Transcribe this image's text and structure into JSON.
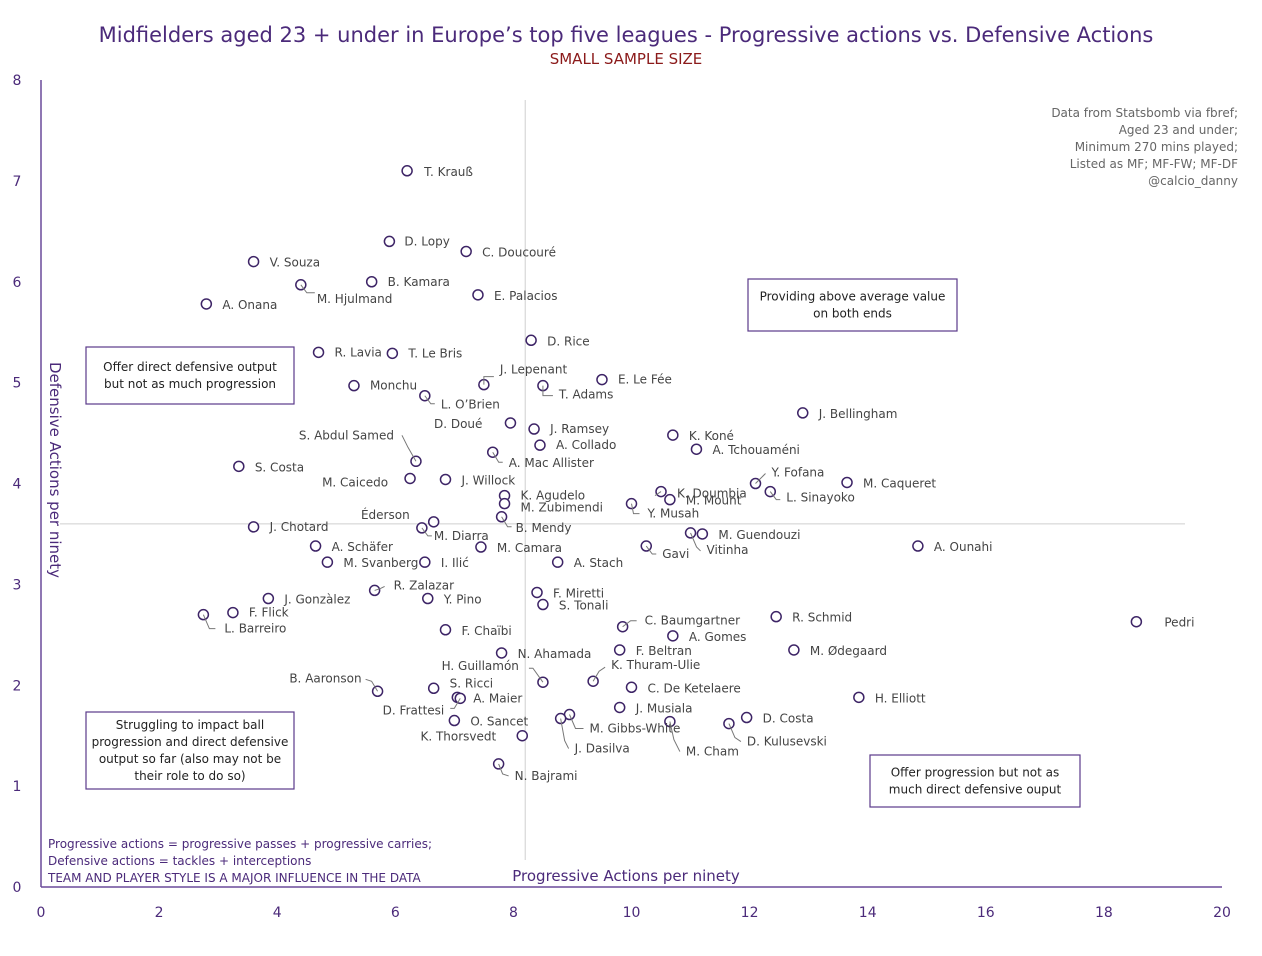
{
  "chart_data": {
    "type": "scatter",
    "title": "Midfielders aged 23 + under in Europe’s top five leagues - Progressive actions vs. Defensive Actions",
    "subtitle": "SMALL SAMPLE SIZE",
    "xlabel": "Progressive Actions per ninety",
    "ylabel": "Defensive Actions per ninety",
    "xlim": [
      0,
      20
    ],
    "ylim": [
      0,
      8
    ],
    "x_ticks": [
      "0",
      "2",
      "4",
      "6",
      "8",
      "10",
      "12",
      "14",
      "16",
      "18",
      "20"
    ],
    "y_ticks": [
      "0",
      "1",
      "2",
      "3",
      "4",
      "5",
      "6",
      "7",
      "8"
    ],
    "reference_lines": {
      "x": 8.2,
      "y": 3.6
    },
    "grid": false,
    "colors": {
      "text": "#4b2a7a",
      "subtitle": "#8b1a1a",
      "axis": "#6a4a9a",
      "marker": "#3d2466",
      "ref_line": "#cfcfcf",
      "gray_text": "#666666"
    },
    "source_note": [
      "Data from Statsbomb via fbref;",
      "Aged 23 and under;",
      "Minimum 270 mins played;",
      "Listed as MF; MF-FW; MF-DF",
      "@calcio_danny"
    ],
    "quadrant_notes": [
      {
        "text": [
          "Providing above average value",
          "on both ends"
        ],
        "position": "top-right"
      },
      {
        "text": [
          "Offer direct defensive output",
          "but not as much progression"
        ],
        "position": "top-left"
      },
      {
        "text": [
          "Struggling to impact ball",
          "progression and direct defensive",
          "output so far (also may not be",
          "their role to do so)"
        ],
        "position": "bottom-left"
      },
      {
        "text": [
          "Offer progression but not as",
          "much direct defensive ouput"
        ],
        "position": "bottom-right"
      }
    ],
    "footnotes": [
      "Progressive actions = progressive passes + progressive carries;",
      "Defensive actions = tackles + interceptions",
      "TEAM AND PLAYER STYLE IS A MAJOR INFLUENCE IN THE DATA"
    ],
    "points": [
      {
        "label": "T. Krauß",
        "x": 6.2,
        "y": 7.1
      },
      {
        "label": "D. Lopy",
        "x": 5.9,
        "y": 6.4
      },
      {
        "label": "C. Doucouré",
        "x": 7.2,
        "y": 6.3
      },
      {
        "label": "V. Souza",
        "x": 3.6,
        "y": 6.2
      },
      {
        "label": "B. Kamara",
        "x": 5.6,
        "y": 6.0
      },
      {
        "label": "M. Hjulmand",
        "x": 4.4,
        "y": 5.97
      },
      {
        "label": "E. Palacios",
        "x": 7.4,
        "y": 5.87
      },
      {
        "label": "A. Onana",
        "x": 2.8,
        "y": 5.78
      },
      {
        "label": "D. Rice",
        "x": 8.3,
        "y": 5.42
      },
      {
        "label": "R. Lavia",
        "x": 4.7,
        "y": 5.3
      },
      {
        "label": "T. Le Bris",
        "x": 5.95,
        "y": 5.29
      },
      {
        "label": "J. Lepenant",
        "x": 7.5,
        "y": 4.98
      },
      {
        "label": "E. Le Fée",
        "x": 9.5,
        "y": 5.03
      },
      {
        "label": "Monchu",
        "x": 5.3,
        "y": 4.97
      },
      {
        "label": "T. Adams",
        "x": 8.5,
        "y": 4.97
      },
      {
        "label": "L. O’Brien",
        "x": 6.5,
        "y": 4.87
      },
      {
        "label": "J. Bellingham",
        "x": 12.9,
        "y": 4.7
      },
      {
        "label": "D. Doué",
        "x": 7.95,
        "y": 4.6
      },
      {
        "label": "J. Ramsey",
        "x": 8.35,
        "y": 4.54
      },
      {
        "label": "K. Koné",
        "x": 10.7,
        "y": 4.48
      },
      {
        "label": "A. Collado",
        "x": 8.45,
        "y": 4.38
      },
      {
        "label": "A. Tchouaméni",
        "x": 11.1,
        "y": 4.34
      },
      {
        "label": "S. Abdul Samed",
        "x": 6.35,
        "y": 4.22
      },
      {
        "label": "A. Mac Allister",
        "x": 7.65,
        "y": 4.31
      },
      {
        "label": "S. Costa",
        "x": 3.35,
        "y": 4.17
      },
      {
        "label": "Y. Fofana",
        "x": 12.1,
        "y": 4.0
      },
      {
        "label": "M. Caicedo",
        "x": 6.25,
        "y": 4.05
      },
      {
        "label": "J. Willock",
        "x": 6.85,
        "y": 4.04
      },
      {
        "label": "M. Caqueret",
        "x": 13.65,
        "y": 4.01
      },
      {
        "label": "K. Doumbia",
        "x": 10.5,
        "y": 3.92
      },
      {
        "label": "L. Sinayoko",
        "x": 12.35,
        "y": 3.92
      },
      {
        "label": "K. Agudelo",
        "x": 7.85,
        "y": 3.88
      },
      {
        "label": "M. Mount",
        "x": 10.65,
        "y": 3.84
      },
      {
        "label": "Y. Musah",
        "x": 10.0,
        "y": 3.8
      },
      {
        "label": "M. Zubimendi",
        "x": 7.85,
        "y": 3.8
      },
      {
        "label": "Éderson",
        "x": 6.65,
        "y": 3.62
      },
      {
        "label": "J. Chotard",
        "x": 3.6,
        "y": 3.57
      },
      {
        "label": "M. Diarra",
        "x": 6.45,
        "y": 3.56
      },
      {
        "label": "B. Mendy",
        "x": 7.8,
        "y": 3.67
      },
      {
        "label": "M. Guendouzi",
        "x": 11.2,
        "y": 3.5
      },
      {
        "label": "Vitinha",
        "x": 11.0,
        "y": 3.51
      },
      {
        "label": "A. Schäfer",
        "x": 4.65,
        "y": 3.38
      },
      {
        "label": "M. Camara",
        "x": 7.45,
        "y": 3.37
      },
      {
        "label": "Gavi",
        "x": 10.25,
        "y": 3.38
      },
      {
        "label": "A. Ounahi",
        "x": 14.85,
        "y": 3.38
      },
      {
        "label": "M. Svanberg",
        "x": 4.85,
        "y": 3.22
      },
      {
        "label": "I. Ilić",
        "x": 6.5,
        "y": 3.22
      },
      {
        "label": "A. Stach",
        "x": 8.75,
        "y": 3.22
      },
      {
        "label": "R. Zalazar",
        "x": 5.65,
        "y": 2.94
      },
      {
        "label": "F. Miretti",
        "x": 8.4,
        "y": 2.92
      },
      {
        "label": "J. Gonzàlez",
        "x": 3.85,
        "y": 2.86
      },
      {
        "label": "Y. Pino",
        "x": 6.55,
        "y": 2.86
      },
      {
        "label": "S. Tonali",
        "x": 8.5,
        "y": 2.8
      },
      {
        "label": "F. Flick",
        "x": 3.25,
        "y": 2.72
      },
      {
        "label": "L. Barreiro",
        "x": 2.75,
        "y": 2.7
      },
      {
        "label": "R. Schmid",
        "x": 12.45,
        "y": 2.68
      },
      {
        "label": "Pedri",
        "x": 18.55,
        "y": 2.63
      },
      {
        "label": "C. Baumgartner",
        "x": 9.85,
        "y": 2.58
      },
      {
        "label": "F. Chaïbi",
        "x": 6.85,
        "y": 2.55
      },
      {
        "label": "A. Gomes",
        "x": 10.7,
        "y": 2.49
      },
      {
        "label": "M. Ødegaard",
        "x": 12.75,
        "y": 2.35
      },
      {
        "label": "F. Beltran",
        "x": 9.8,
        "y": 2.35
      },
      {
        "label": "N. Ahamada",
        "x": 7.8,
        "y": 2.32
      },
      {
        "label": "H. Guillamón",
        "x": 8.5,
        "y": 2.03
      },
      {
        "label": "K. Thuram-Ulie",
        "x": 9.35,
        "y": 2.04
      },
      {
        "label": "B. Aaronson",
        "x": 5.7,
        "y": 1.94
      },
      {
        "label": "S. Ricci",
        "x": 6.65,
        "y": 1.97
      },
      {
        "label": "C. De Ketelaere",
        "x": 10.0,
        "y": 1.98
      },
      {
        "label": "A. Maier",
        "x": 7.05,
        "y": 1.88
      },
      {
        "label": "H. Elliott",
        "x": 13.85,
        "y": 1.88
      },
      {
        "label": "J. Musiala",
        "x": 9.8,
        "y": 1.78
      },
      {
        "label": "D. Frattesi",
        "x": 7.1,
        "y": 1.87
      },
      {
        "label": "D. Costa",
        "x": 11.95,
        "y": 1.68
      },
      {
        "label": "M. Gibbs-White",
        "x": 8.95,
        "y": 1.71
      },
      {
        "label": "J. Dasilva",
        "x": 8.8,
        "y": 1.67
      },
      {
        "label": "O. Sancet",
        "x": 7.0,
        "y": 1.65
      },
      {
        "label": "M. Cham",
        "x": 10.65,
        "y": 1.64
      },
      {
        "label": "D. Kulusevski",
        "x": 11.65,
        "y": 1.62
      },
      {
        "label": "K. Thorsvedt",
        "x": 8.15,
        "y": 1.5
      },
      {
        "label": "N. Bajrami",
        "x": 7.75,
        "y": 1.22
      }
    ]
  }
}
